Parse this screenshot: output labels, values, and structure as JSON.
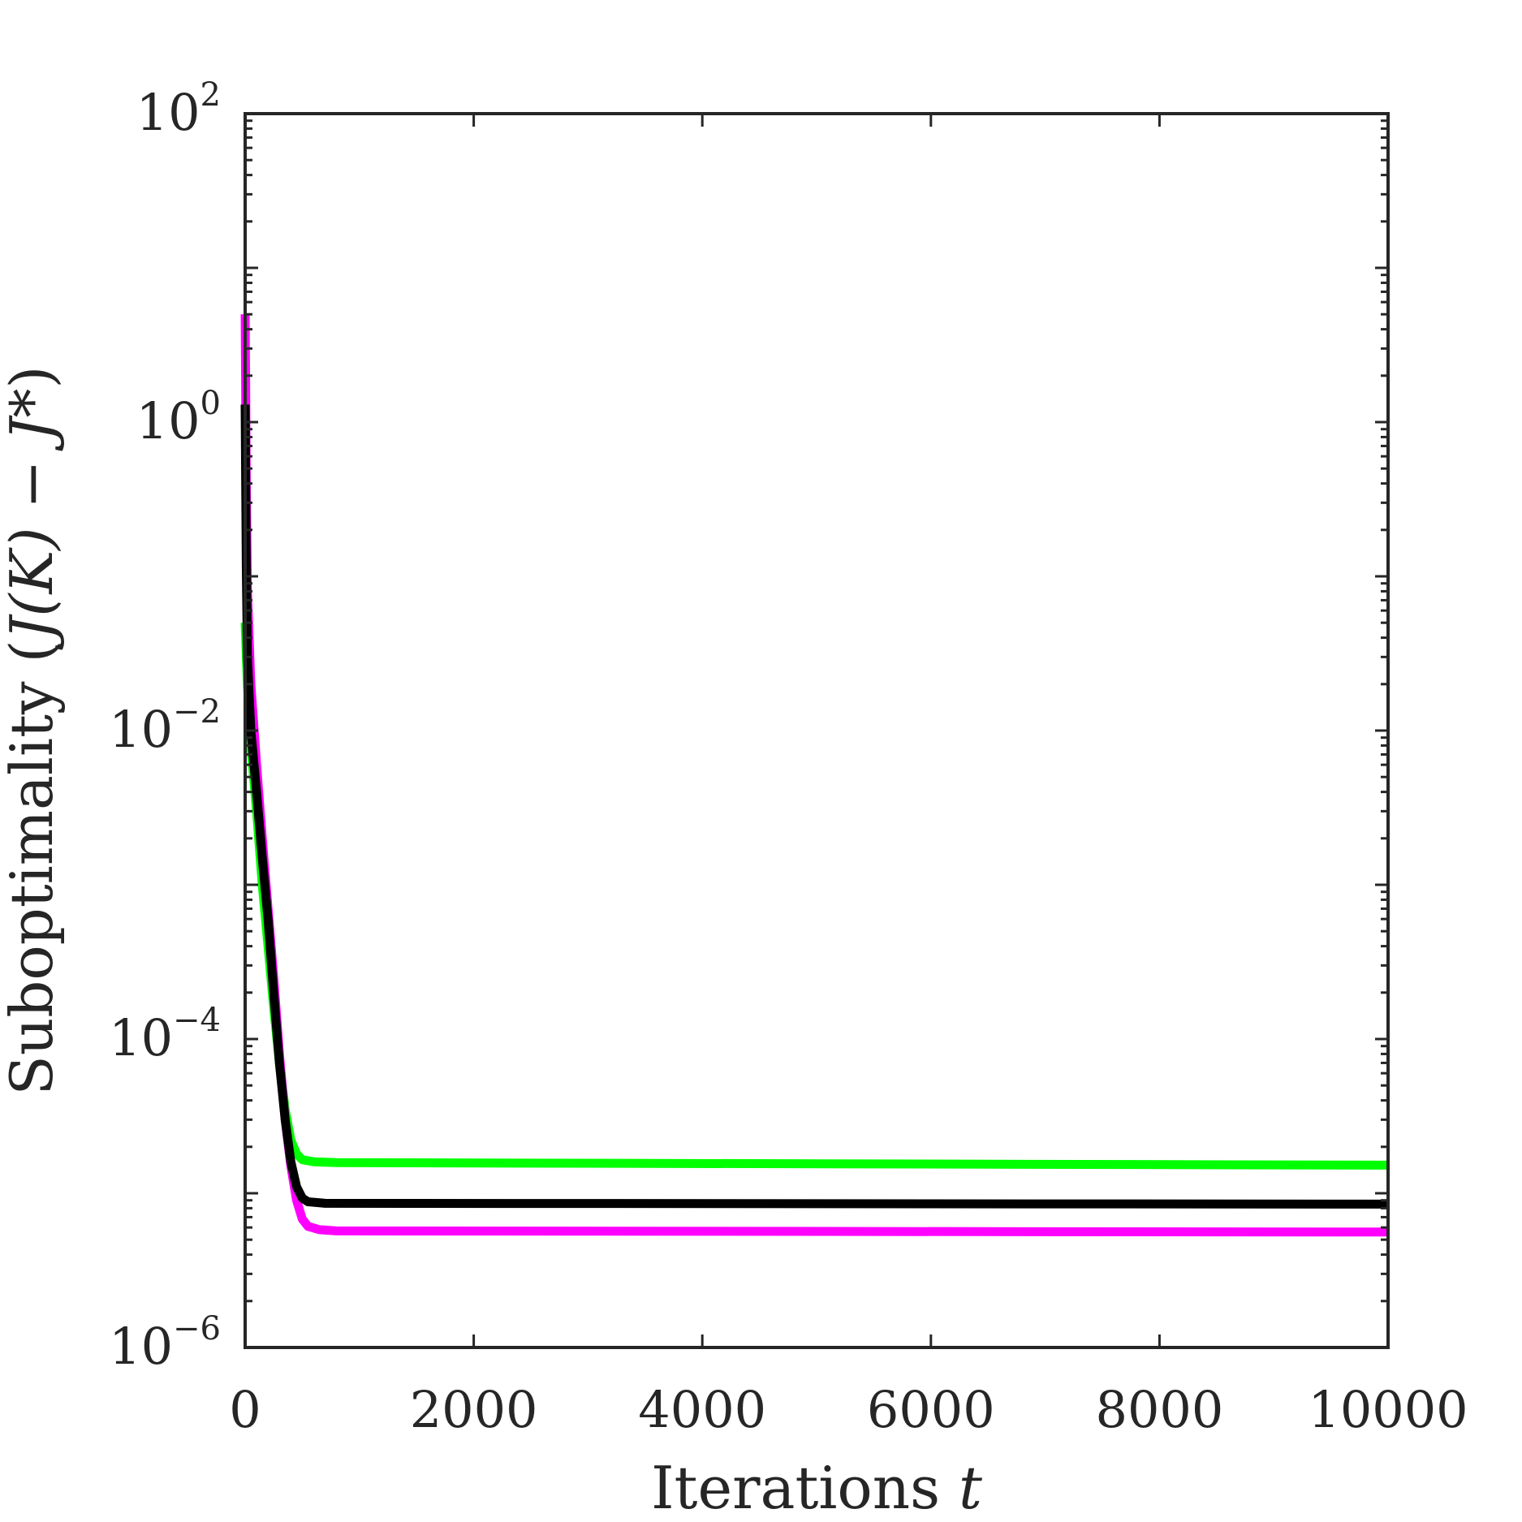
{
  "chart_data": {
    "type": "line",
    "title": "",
    "xlabel": {
      "text": "Iterations ",
      "var": "t"
    },
    "ylabel": {
      "text": "Suboptimality (",
      "expr": "J(K) − J*",
      "close": ")"
    },
    "xlim": [
      0,
      10000
    ],
    "ylim": [
      1e-06,
      100
    ],
    "yscale": "log",
    "grid": false,
    "legend": "none",
    "x_ticks": [
      "0",
      "2000",
      "4000",
      "6000",
      "8000",
      "10000"
    ],
    "y_ticks": [
      {
        "base": "10",
        "exp": "2",
        "value": 100
      },
      {
        "base": "10",
        "exp": "0",
        "value": 1
      },
      {
        "base": "10",
        "exp": "−2",
        "value": 0.01
      },
      {
        "base": "10",
        "exp": "−4",
        "value": 0.0001
      },
      {
        "base": "10",
        "exp": "−6",
        "value": 1e-06
      }
    ],
    "series": [
      {
        "color": "#00ff00",
        "x": [
          0,
          20,
          50,
          100,
          150,
          200,
          250,
          300,
          350,
          400,
          450,
          500,
          600,
          800,
          10000
        ],
        "y": [
          0.05,
          0.02,
          0.008,
          0.003,
          0.001,
          0.0004,
          0.00016,
          7e-05,
          3.5e-05,
          2.2e-05,
          1.8e-05,
          1.65e-05,
          1.6e-05,
          1.58e-05,
          1.52e-05
        ]
      },
      {
        "color": "#ff00ff",
        "x": [
          0,
          5,
          10,
          20,
          50,
          100,
          150,
          200,
          250,
          300,
          350,
          400,
          450,
          500,
          550,
          650,
          800,
          10000
        ],
        "y": [
          5,
          1.5,
          0.4,
          0.08,
          0.02,
          0.006,
          0.002,
          0.0007,
          0.00025,
          8e-05,
          3e-05,
          1.5e-05,
          9e-06,
          6.8e-06,
          6.1e-06,
          5.8e-06,
          5.7e-06,
          5.6e-06
        ]
      },
      {
        "color": "#000000",
        "x": [
          0,
          5,
          10,
          20,
          50,
          100,
          150,
          200,
          250,
          300,
          350,
          400,
          450,
          500,
          550,
          700,
          10000
        ],
        "y": [
          1.3,
          0.4,
          0.12,
          0.03,
          0.01,
          0.004,
          0.0015,
          0.0006,
          0.0002,
          7e-05,
          3e-05,
          1.6e-05,
          1.1e-05,
          9.3e-06,
          8.8e-06,
          8.6e-06,
          8.5e-06
        ]
      }
    ]
  }
}
